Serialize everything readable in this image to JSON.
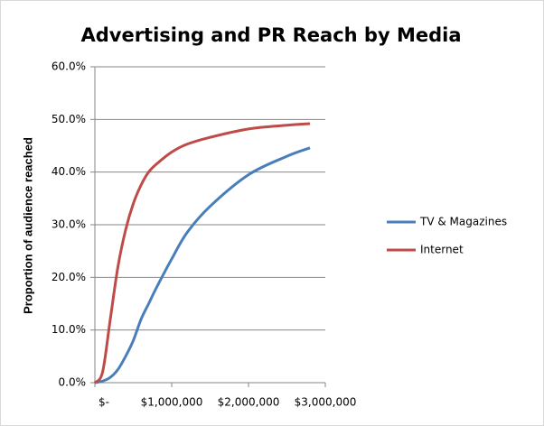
{
  "chart_data": {
    "type": "line",
    "title": "Advertising and PR Reach by Media",
    "y_label": "Proportion of audience reached",
    "x": [
      0,
      100000,
      200000,
      300000,
      400000,
      500000,
      600000,
      700000,
      800000,
      1000000,
      1200000,
      1500000,
      2000000,
      2500000,
      2800000
    ],
    "series": [
      {
        "name": "TV & Magazines",
        "color": "#4a7ebb",
        "values": [
          0,
          0.3,
          1,
          2.5,
          5,
          8,
          12,
          15,
          18,
          23.5,
          28.5,
          33.5,
          39.5,
          43,
          44.6
        ]
      },
      {
        "name": "Internet",
        "color": "#be4b48",
        "values": [
          0,
          2,
          12,
          22,
          29,
          34,
          37.5,
          40,
          41.5,
          43.8,
          45.3,
          46.6,
          48.2,
          48.9,
          49.2
        ]
      }
    ],
    "xlim": [
      0,
      3000000
    ],
    "xticks": [
      {
        "value": 0,
        "label": "$-"
      },
      {
        "value": 1000000,
        "label": "$1,000,000"
      },
      {
        "value": 2000000,
        "label": "$2,000,000"
      },
      {
        "value": 3000000,
        "label": "$3,000,000"
      }
    ],
    "ylim": [
      0,
      60
    ],
    "yticks": [
      {
        "value": 0,
        "label": "0.0%"
      },
      {
        "value": 10,
        "label": "10.0%"
      },
      {
        "value": 20,
        "label": "20.0%"
      },
      {
        "value": 30,
        "label": "30.0%"
      },
      {
        "value": 40,
        "label": "40.0%"
      },
      {
        "value": 50,
        "label": "50.0%"
      },
      {
        "value": 60,
        "label": "60.0%"
      }
    ],
    "grid": true,
    "legend": "right"
  }
}
